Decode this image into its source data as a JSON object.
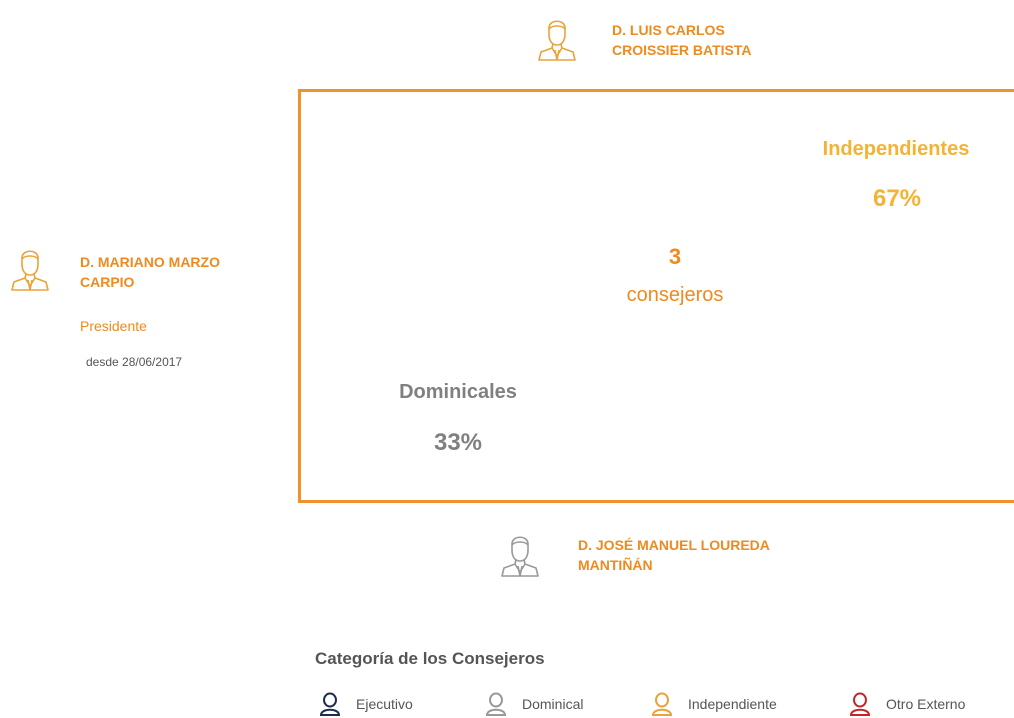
{
  "members": [
    {
      "name_lines": [
        "D. LUIS CARLOS",
        "CROISSIER BATISTA"
      ]
    },
    {
      "name_lines": [
        "D. MARIANO MARZO",
        "CARPIO"
      ],
      "role": "Presidente",
      "since": "desde 28/06/2017"
    },
    {
      "name_lines": [
        "D. JOSÉ MANUEL LOUREDA",
        "MANTIÑÁN"
      ]
    }
  ],
  "center": {
    "count": "3",
    "label": "consejeros"
  },
  "segments": [
    {
      "name": "Independientes",
      "percent": "67%"
    },
    {
      "name": "Dominicales",
      "percent": "33%"
    }
  ],
  "legend": {
    "title": "Categoría de los Consejeros",
    "items": [
      "Ejecutivo",
      "Dominical",
      "Independiente",
      "Otro Externo"
    ]
  }
}
